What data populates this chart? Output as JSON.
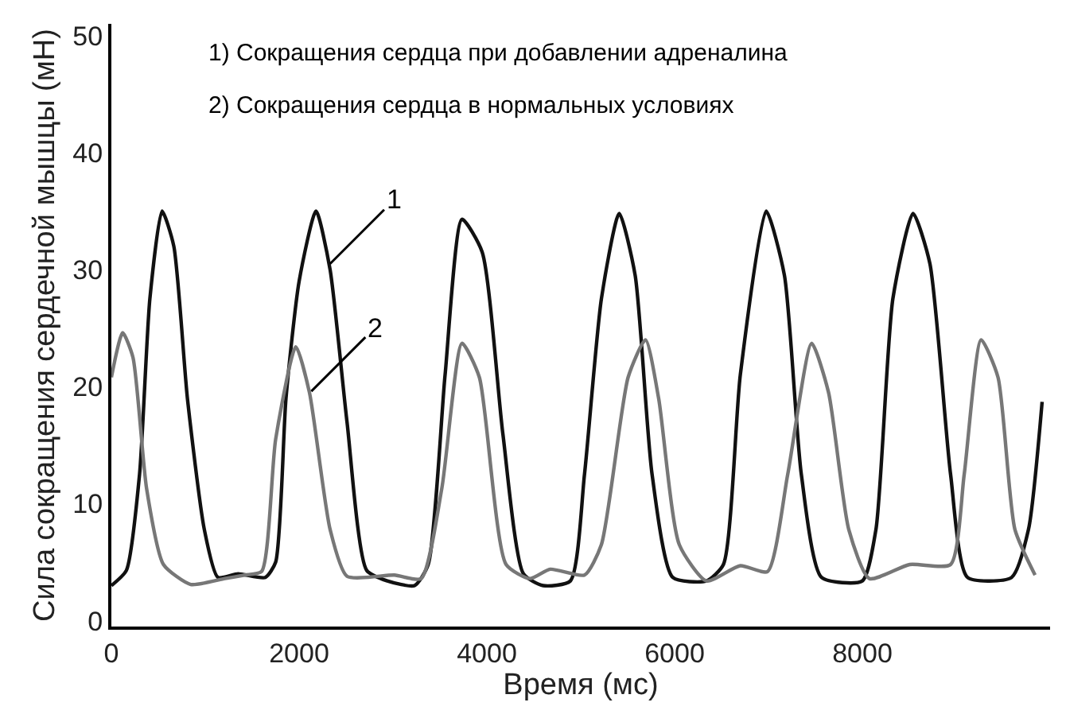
{
  "chart_data": {
    "type": "line",
    "xlabel": "Время (мс)",
    "ylabel": "Сила сокращения сердечной мышцы (мН)",
    "xlim": [
      0,
      10000
    ],
    "ylim": [
      -0.5,
      51
    ],
    "xticks": [
      0,
      2000,
      4000,
      6000,
      8000
    ],
    "yticks": [
      0,
      10,
      20,
      30,
      40,
      50
    ],
    "marker": "none",
    "line_style": "solid",
    "series": [
      {
        "color": "#111111",
        "x": [
          0,
          160,
          300,
          410,
          540,
          665,
          810,
          990,
          1135,
          1350,
          1640,
          1750,
          1860,
          2000,
          2180,
          2330,
          2510,
          2720,
          2940,
          3230,
          3375,
          3555,
          3735,
          3950,
          4170,
          4390,
          4600,
          4890,
          5040,
          5220,
          5410,
          5580,
          5760,
          5980,
          6340,
          6520,
          6700,
          6975,
          7170,
          7350,
          7565,
          8000,
          8145,
          8325,
          8540,
          8720,
          8940,
          9120,
          9590,
          9770,
          9915
        ],
        "values": [
          3,
          4.3,
          12.5,
          27.5,
          35,
          32,
          19,
          7.8,
          3.7,
          4,
          3.7,
          5,
          19,
          29,
          35,
          30,
          17,
          4.3,
          3.4,
          3,
          4.8,
          21,
          34.3,
          31.5,
          16,
          4,
          3,
          3.4,
          12.5,
          27.5,
          34.8,
          29.5,
          12.5,
          3.7,
          3.4,
          4.8,
          21,
          35,
          29.5,
          12.5,
          3.7,
          3.4,
          7.8,
          27.5,
          34.8,
          30.5,
          12.5,
          3.7,
          3.7,
          7.8,
          18.7
        ]
      },
      {
        "color": "#777777",
        "x": [
          0,
          120,
          230,
          375,
          555,
          845,
          1210,
          1420,
          1600,
          1750,
          1965,
          2110,
          2330,
          2510,
          3015,
          3300,
          3520,
          3735,
          3920,
          4205,
          4460,
          4675,
          5040,
          5220,
          5505,
          5690,
          5830,
          6050,
          6340,
          6700,
          6990,
          7205,
          7460,
          7640,
          7855,
          8075,
          8505,
          8940,
          9085,
          9265,
          9445,
          9625,
          9840
        ],
        "values": [
          20.8,
          24.6,
          22.5,
          11.3,
          4.8,
          3.1,
          3.6,
          3.9,
          4.2,
          15.5,
          23.4,
          19.5,
          7.8,
          3.8,
          3.9,
          3.6,
          11.3,
          23.7,
          20.8,
          4.8,
          3.6,
          4.4,
          3.9,
          6.5,
          20.8,
          24,
          19,
          6.5,
          3.4,
          4.7,
          4.2,
          12.5,
          23.7,
          19.5,
          7.8,
          3.6,
          4.8,
          4.8,
          12.5,
          24,
          20.8,
          7.8,
          3.9
        ]
      }
    ],
    "annotations": [
      {
        "text": "1",
        "x": 2330,
        "y": 30.5
      },
      {
        "text": "2",
        "x": 2130,
        "y": 19.6
      },
      "1) Сокращения сердца при добавлении адреналина",
      "2) Сокращения сердца в нормальных условиях"
    ]
  }
}
